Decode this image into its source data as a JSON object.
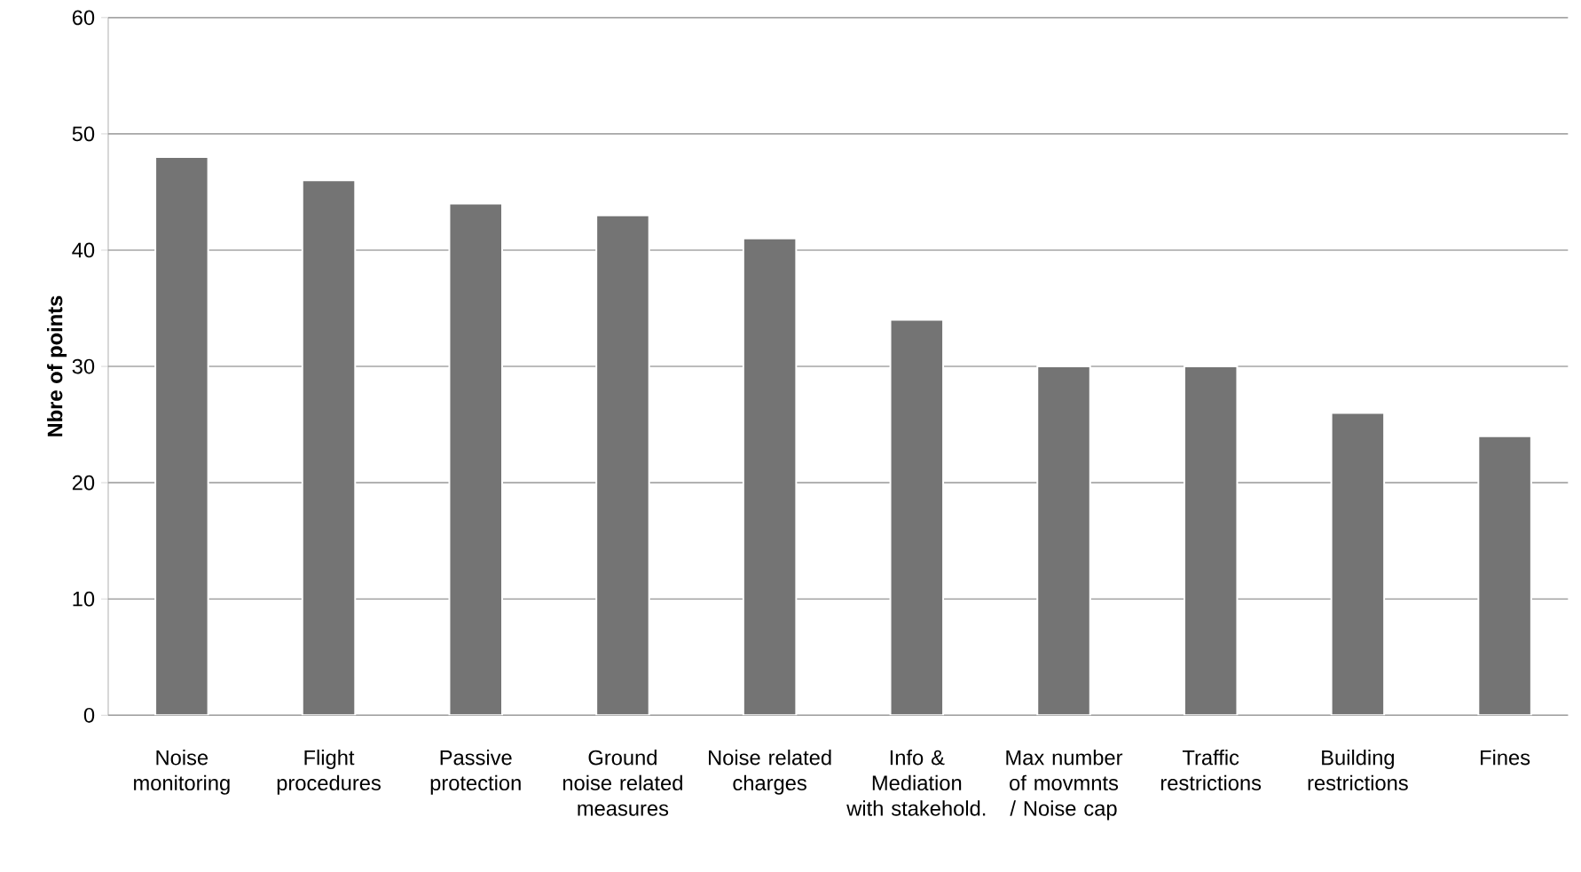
{
  "chart_data": {
    "type": "bar",
    "ylabel": "Nbre of points",
    "categories": [
      "Noise monitoring",
      "Flight procedures",
      "Passive protection",
      "Ground noise related measures",
      "Noise related charges",
      "Info & Mediation with stakehold.",
      "Max number of movmnts / Noise cap",
      "Traffic restrictions",
      "Building restrictions",
      "Fines"
    ],
    "values": [
      48,
      46,
      44,
      43,
      41,
      34,
      30,
      30,
      26,
      24
    ],
    "color": "#747474",
    "ylim": [
      0,
      60
    ],
    "yticks": [
      0,
      10,
      20,
      30,
      40,
      50,
      60
    ],
    "grid": "y"
  }
}
